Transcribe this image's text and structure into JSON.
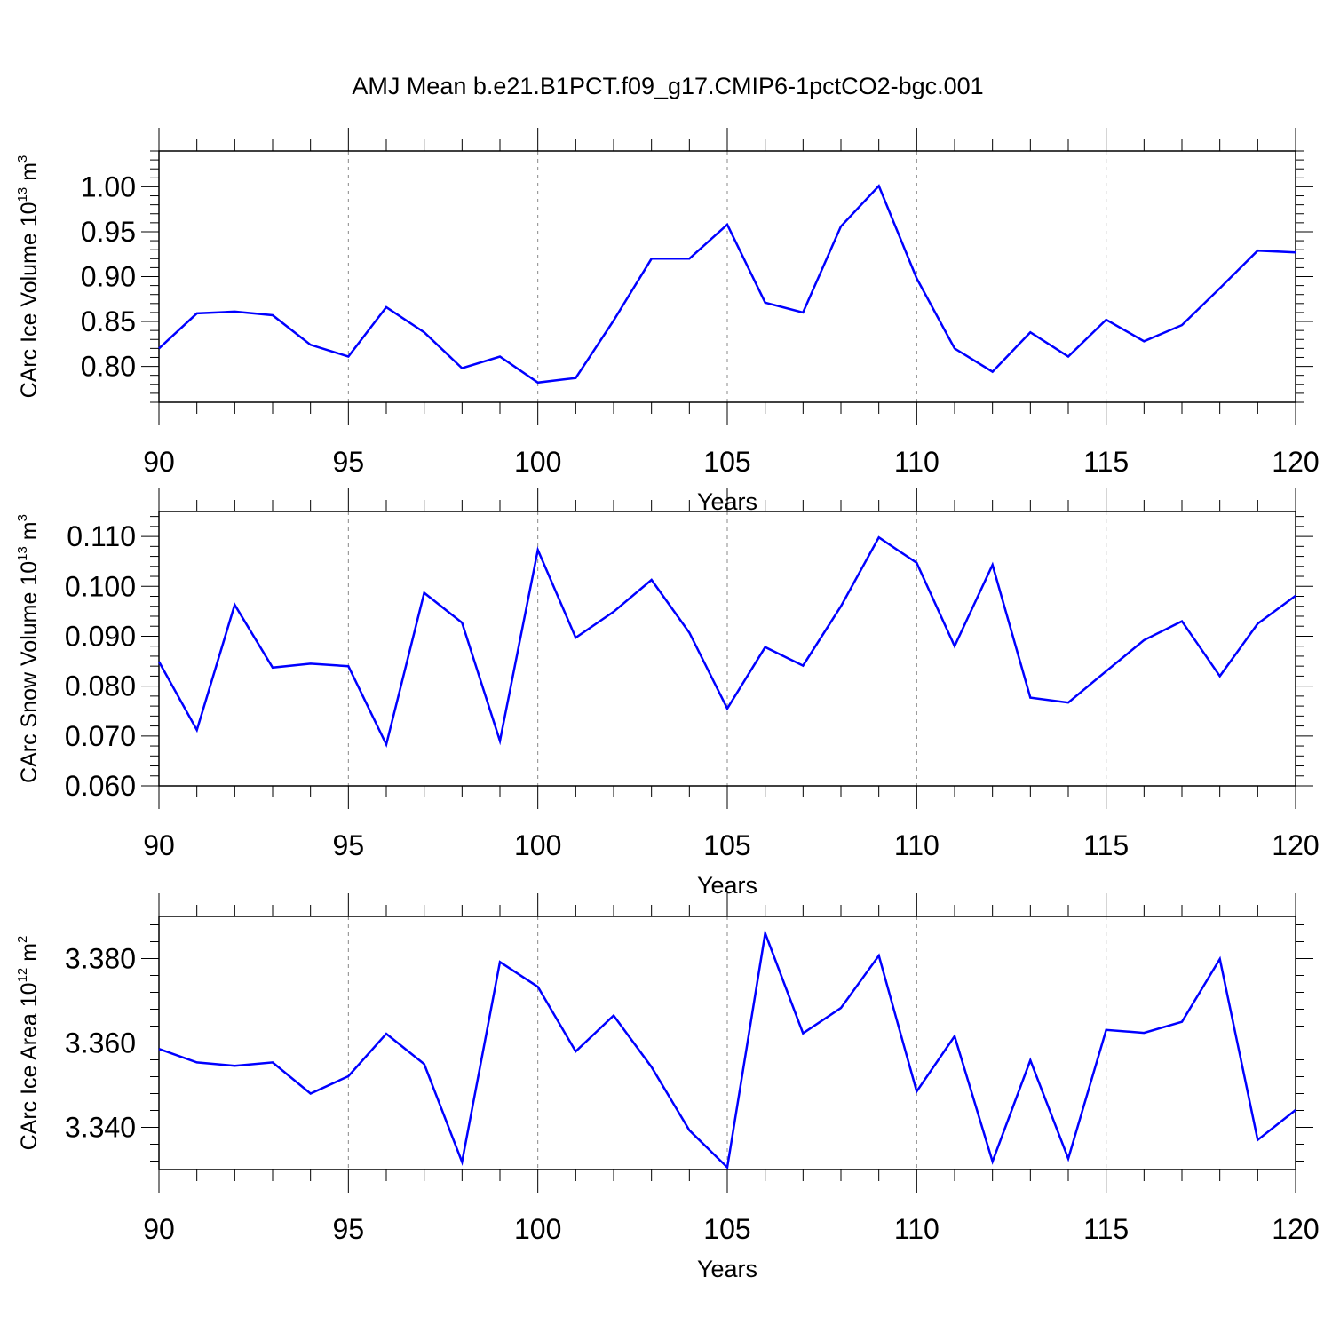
{
  "title": "AMJ Mean b.e21.B1PCT.f09_g17.CMIP6-1pctCO2-bgc.001",
  "colors": {
    "line": "#0000ff",
    "axis": "#000000",
    "grid": "#888888"
  },
  "chart_data": [
    {
      "type": "line",
      "xlabel": "Years",
      "ylabel": {
        "text": "CArc Ice Volume 10",
        "exp": "13",
        "unit": " m",
        "unit_exp": "3"
      },
      "xlim": [
        90,
        120
      ],
      "ylim": [
        0.76,
        1.04
      ],
      "xticks": [
        90,
        95,
        100,
        105,
        110,
        115,
        120
      ],
      "yticks": [
        "0.80",
        "0.85",
        "0.90",
        "0.95",
        "1.00"
      ],
      "x": [
        90,
        91,
        92,
        93,
        94,
        95,
        96,
        97,
        98,
        99,
        100,
        101,
        102,
        103,
        104,
        105,
        106,
        107,
        108,
        109,
        110,
        111,
        112,
        113,
        114,
        115,
        116,
        117,
        118,
        119,
        120
      ],
      "series": [
        {
          "values": [
            0.82,
            0.859,
            0.861,
            0.857,
            0.824,
            0.811,
            0.866,
            0.838,
            0.798,
            0.811,
            0.782,
            0.787,
            0.851,
            0.92,
            0.92,
            0.958,
            0.871,
            0.86,
            0.956,
            1.001,
            0.898,
            0.82,
            0.794,
            0.838,
            0.811,
            0.852,
            0.828,
            0.846,
            0.887,
            0.929,
            0.927
          ]
        }
      ],
      "grid": "vertical dashed at major x ticks"
    },
    {
      "type": "line",
      "xlabel": "Years",
      "ylabel": {
        "text": "CArc Snow Volume 10",
        "exp": "13",
        "unit": " m",
        "unit_exp": "3"
      },
      "xlim": [
        90,
        120
      ],
      "ylim": [
        0.06,
        0.115
      ],
      "xticks": [
        90,
        95,
        100,
        105,
        110,
        115,
        120
      ],
      "yticks": [
        "0.060",
        "0.070",
        "0.080",
        "0.090",
        "0.100",
        "0.110"
      ],
      "x": [
        90,
        91,
        92,
        93,
        94,
        95,
        96,
        97,
        98,
        99,
        100,
        101,
        102,
        103,
        104,
        105,
        106,
        107,
        108,
        109,
        110,
        111,
        112,
        113,
        114,
        115,
        116,
        117,
        118,
        119,
        120
      ],
      "series": [
        {
          "values": [
            0.0849,
            0.0712,
            0.0963,
            0.0837,
            0.0845,
            0.084,
            0.0683,
            0.0987,
            0.0927,
            0.069,
            0.1073,
            0.0897,
            0.0949,
            0.1013,
            0.0907,
            0.0755,
            0.0878,
            0.0841,
            0.096,
            0.1098,
            0.1047,
            0.088,
            0.1043,
            0.0777,
            0.0767,
            0.083,
            0.0892,
            0.093,
            0.082,
            0.0925,
            0.0981
          ]
        }
      ],
      "grid": "vertical dashed at major x ticks"
    },
    {
      "type": "line",
      "xlabel": "Years",
      "ylabel": {
        "text": "CArc Ice Area 10",
        "exp": "12",
        "unit": " m",
        "unit_exp": "2"
      },
      "xlim": [
        90,
        120
      ],
      "ylim": [
        3.33,
        3.39
      ],
      "xticks": [
        90,
        95,
        100,
        105,
        110,
        115,
        120
      ],
      "yticks": [
        "3.340",
        "3.360",
        "3.380"
      ],
      "x": [
        90,
        91,
        92,
        93,
        94,
        95,
        96,
        97,
        98,
        99,
        100,
        101,
        102,
        103,
        104,
        105,
        106,
        107,
        108,
        109,
        110,
        111,
        112,
        113,
        114,
        115,
        116,
        117,
        118,
        119,
        120
      ],
      "series": [
        {
          "values": [
            3.3586,
            3.3554,
            3.3546,
            3.3554,
            3.348,
            3.3521,
            3.3622,
            3.355,
            3.3318,
            3.3792,
            3.3733,
            3.358,
            3.3665,
            3.3543,
            3.3393,
            3.3305,
            3.386,
            3.3623,
            3.3683,
            3.3807,
            3.3485,
            3.3616,
            3.3319,
            3.3559,
            3.3326,
            3.3631,
            3.3624,
            3.365,
            3.3799,
            3.337,
            3.3441
          ]
        }
      ],
      "grid": "vertical dashed at major x ticks"
    }
  ]
}
